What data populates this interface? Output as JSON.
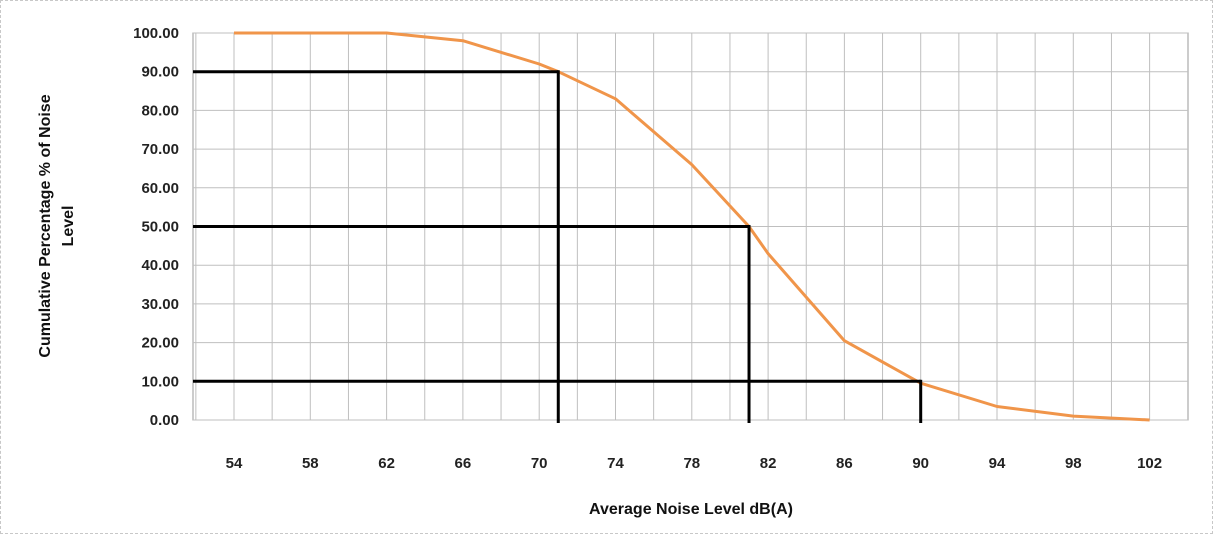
{
  "chart_data": {
    "type": "line",
    "title": "",
    "xlabel": "Average Noise Level dB(A)",
    "ylabel_lines": [
      "Cumulative Percentage % of Noise",
      "Level"
    ],
    "x_ticks": [
      "54",
      "58",
      "62",
      "66",
      "70",
      "74",
      "78",
      "82",
      "86",
      "90",
      "94",
      "98",
      "102"
    ],
    "y_ticks": [
      "0.00",
      "10.00",
      "20.00",
      "30.00",
      "40.00",
      "50.00",
      "60.00",
      "70.00",
      "80.00",
      "90.00",
      "100.00"
    ],
    "xlim": [
      52,
      104
    ],
    "ylim": [
      0,
      100
    ],
    "grid": true,
    "legend": "none",
    "series": [
      {
        "color": "#f0954a",
        "x": [
          54,
          58,
          62,
          66,
          70,
          71,
          74,
          78,
          81,
          82,
          86,
          90,
          94,
          98,
          102
        ],
        "y": [
          100,
          100,
          100,
          98,
          92,
          90,
          83,
          66,
          50,
          43,
          20.5,
          9.5,
          3.5,
          1,
          0
        ]
      }
    ],
    "reference_lines": [
      {
        "y": 90,
        "x": 71
      },
      {
        "y": 50,
        "x": 81
      },
      {
        "y": 10,
        "x": 90
      }
    ],
    "reference_color": "#000000",
    "grid_color": "#bfbfbf"
  }
}
